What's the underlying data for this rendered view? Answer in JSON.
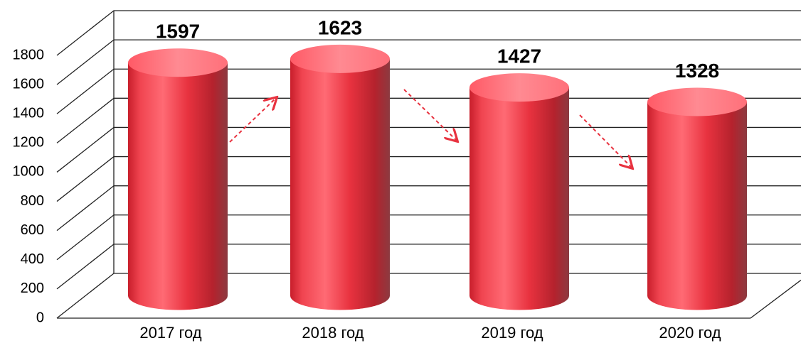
{
  "chart_data": {
    "type": "bar",
    "categories": [
      "2017 год",
      "2018 год",
      "2019 год",
      "2020 год"
    ],
    "values": [
      1597,
      1623,
      1427,
      1328
    ],
    "color": "#e8323f",
    "ylim": [
      0,
      1800
    ],
    "yticks": [
      0,
      200,
      400,
      600,
      800,
      1000,
      1200,
      1400,
      1600,
      1800
    ],
    "grid": true
  }
}
